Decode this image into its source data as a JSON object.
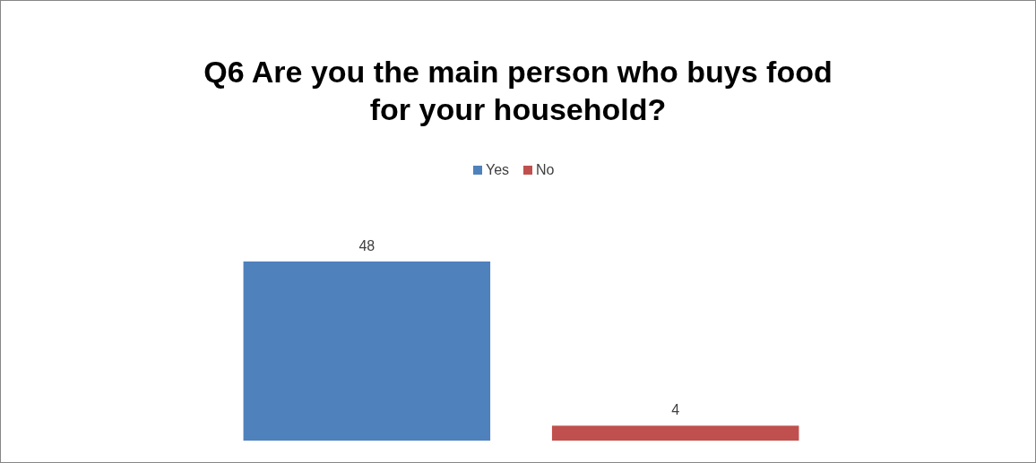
{
  "chart_data": {
    "type": "bar",
    "title": "Q6 Are you the main person who buys food for your household?",
    "categories": [
      null
    ],
    "series": [
      {
        "name": "Yes",
        "color": "#4f81bd",
        "values": [
          48
        ]
      },
      {
        "name": "No",
        "color": "#c0504d",
        "values": [
          4
        ]
      }
    ],
    "data_labels": true,
    "legend": "top",
    "grid": false
  }
}
